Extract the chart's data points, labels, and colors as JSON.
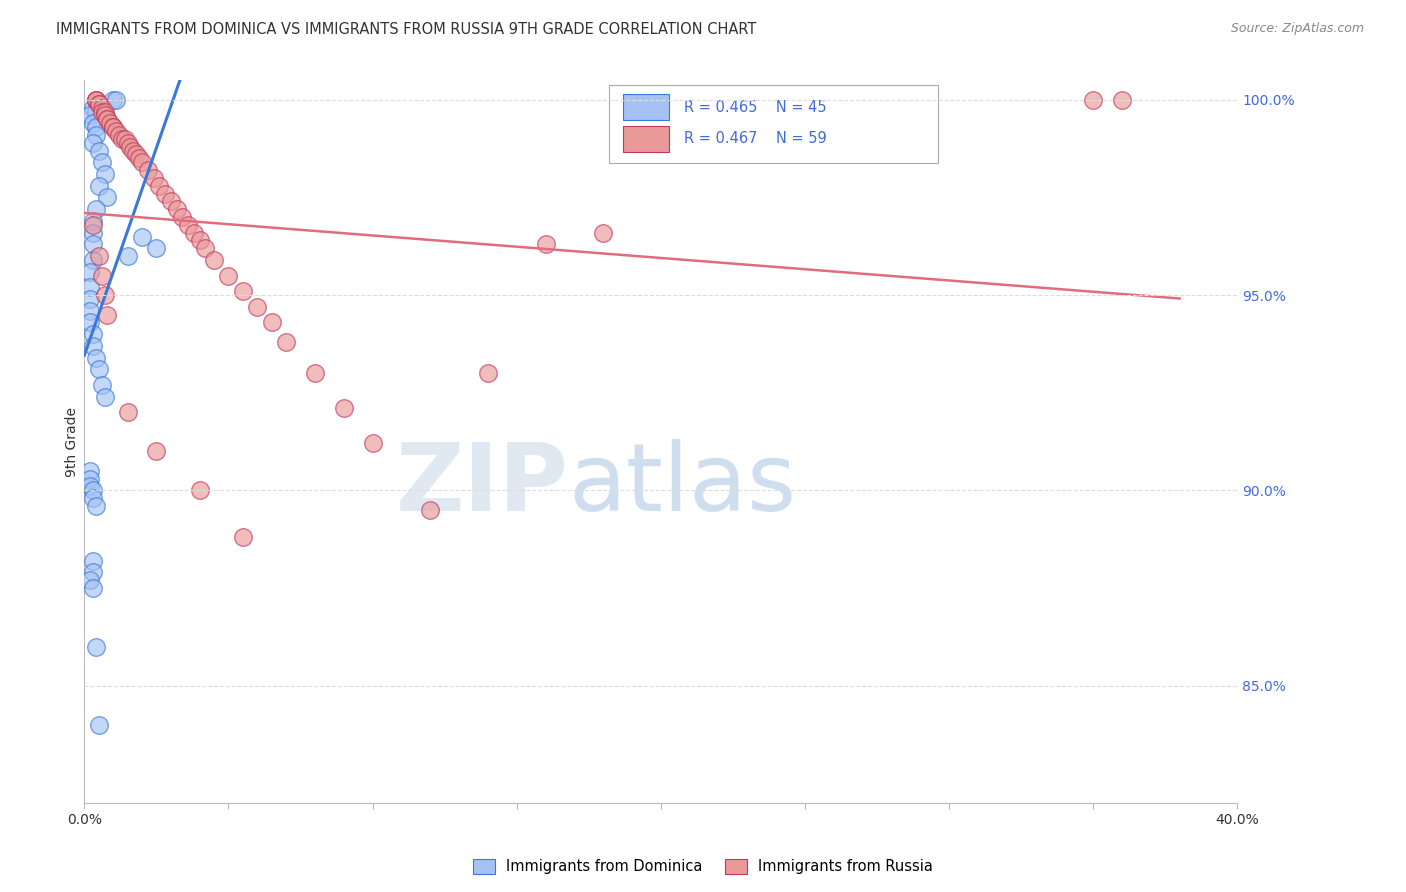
{
  "title": "IMMIGRANTS FROM DOMINICA VS IMMIGRANTS FROM RUSSIA 9TH GRADE CORRELATION CHART",
  "source": "Source: ZipAtlas.com",
  "ylabel": "9th Grade",
  "x_min": 0.0,
  "x_max": 0.4,
  "y_min": 0.82,
  "y_max": 1.005,
  "y_ticks": [
    0.85,
    0.9,
    0.95,
    1.0
  ],
  "y_tick_labels": [
    "85.0%",
    "90.0%",
    "95.0%",
    "100.0%"
  ],
  "legend_items": [
    "Immigrants from Dominica",
    "Immigrants from Russia"
  ],
  "blue_color": "#a4c2f4",
  "pink_color": "#ea9999",
  "trend_blue": "#3c78d8",
  "trend_pink": "#e06c7d",
  "R_blue": 0.465,
  "N_blue": 45,
  "R_pink": 0.467,
  "N_pink": 59,
  "blue_points_x": [
    0.01,
    0.011,
    0.003,
    0.004,
    0.002,
    0.003,
    0.004,
    0.004,
    0.003,
    0.005,
    0.006,
    0.007,
    0.005,
    0.008,
    0.004,
    0.003,
    0.003,
    0.003,
    0.003,
    0.002,
    0.002,
    0.002,
    0.002,
    0.002,
    0.003,
    0.003,
    0.004,
    0.005,
    0.006,
    0.007,
    0.015,
    0.02,
    0.025,
    0.002,
    0.002,
    0.002,
    0.003,
    0.003,
    0.004,
    0.003,
    0.003,
    0.002,
    0.003,
    0.004,
    0.005
  ],
  "blue_points_y": [
    1.0,
    1.0,
    0.998,
    0.997,
    0.996,
    0.994,
    0.993,
    0.991,
    0.989,
    0.987,
    0.984,
    0.981,
    0.978,
    0.975,
    0.972,
    0.969,
    0.966,
    0.963,
    0.959,
    0.956,
    0.952,
    0.949,
    0.946,
    0.943,
    0.94,
    0.937,
    0.934,
    0.931,
    0.927,
    0.924,
    0.96,
    0.965,
    0.962,
    0.905,
    0.903,
    0.901,
    0.9,
    0.898,
    0.896,
    0.882,
    0.879,
    0.877,
    0.875,
    0.86,
    0.84
  ],
  "pink_points_x": [
    0.004,
    0.004,
    0.004,
    0.005,
    0.005,
    0.006,
    0.006,
    0.007,
    0.007,
    0.008,
    0.008,
    0.009,
    0.01,
    0.01,
    0.011,
    0.012,
    0.013,
    0.014,
    0.015,
    0.016,
    0.017,
    0.018,
    0.019,
    0.02,
    0.022,
    0.024,
    0.026,
    0.028,
    0.03,
    0.032,
    0.034,
    0.036,
    0.038,
    0.04,
    0.042,
    0.045,
    0.05,
    0.055,
    0.06,
    0.065,
    0.07,
    0.08,
    0.09,
    0.1,
    0.12,
    0.14,
    0.16,
    0.18,
    0.35,
    0.36,
    0.003,
    0.005,
    0.006,
    0.007,
    0.008,
    0.015,
    0.025,
    0.04,
    0.055
  ],
  "pink_points_y": [
    1.0,
    1.0,
    1.0,
    0.999,
    0.999,
    0.998,
    0.997,
    0.997,
    0.996,
    0.995,
    0.995,
    0.994,
    0.993,
    0.993,
    0.992,
    0.991,
    0.99,
    0.99,
    0.989,
    0.988,
    0.987,
    0.986,
    0.985,
    0.984,
    0.982,
    0.98,
    0.978,
    0.976,
    0.974,
    0.972,
    0.97,
    0.968,
    0.966,
    0.964,
    0.962,
    0.959,
    0.955,
    0.951,
    0.947,
    0.943,
    0.938,
    0.93,
    0.921,
    0.912,
    0.895,
    0.93,
    0.963,
    0.966,
    1.0,
    1.0,
    0.968,
    0.96,
    0.955,
    0.95,
    0.945,
    0.92,
    0.91,
    0.9,
    0.888
  ],
  "watermark_zip": "ZIP",
  "watermark_atlas": "atlas",
  "background_color": "#ffffff",
  "grid_color": "#dddddd"
}
